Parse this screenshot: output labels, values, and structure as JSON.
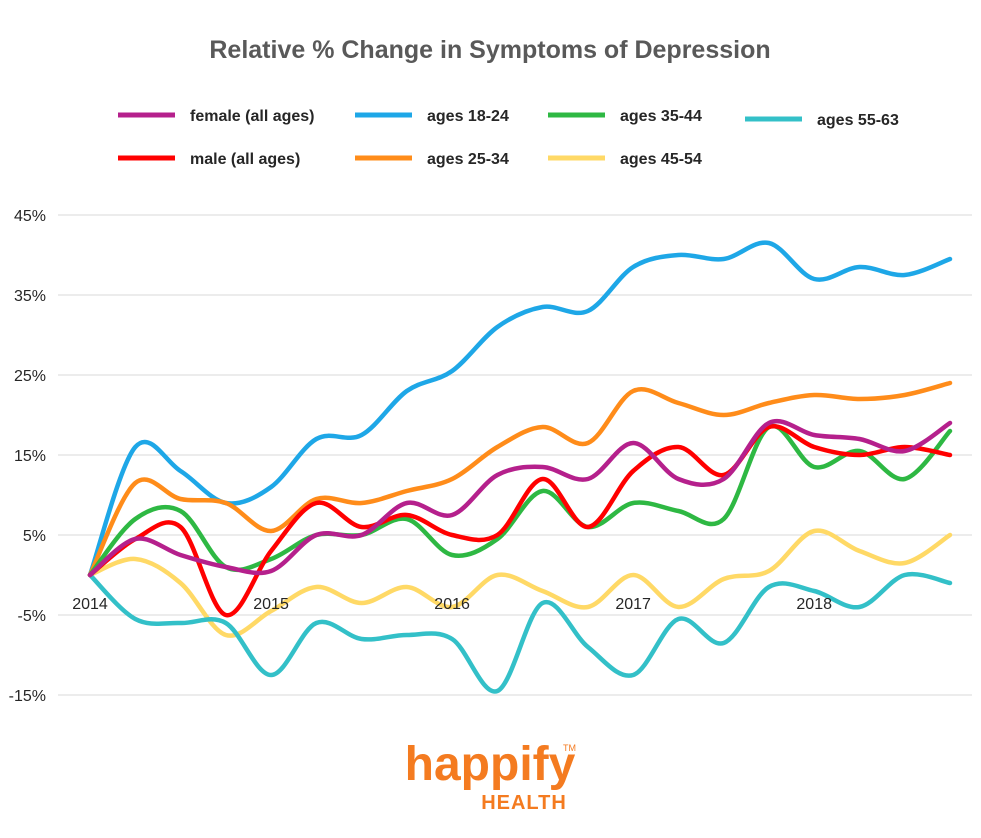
{
  "chart_data": {
    "type": "line",
    "title": "Relative % Change in Symptoms of Depression",
    "xlabel": "",
    "ylabel": "",
    "x_ticks": [
      "2014",
      "2015",
      "2016",
      "2017",
      "2018"
    ],
    "x_range": [
      2014,
      2018.75
    ],
    "y_ticks": [
      "45%",
      "35%",
      "25%",
      "15%",
      "5%",
      "-5%",
      "-15%"
    ],
    "ylim": [
      -15,
      45
    ],
    "grid": true,
    "legend_position": "top",
    "series": [
      {
        "name": "female (all ages)",
        "color": "#b5208c",
        "x": [
          2014,
          2014.25,
          2014.5,
          2014.75,
          2015,
          2015.25,
          2015.5,
          2015.75,
          2016,
          2016.25,
          2016.5,
          2016.75,
          2017,
          2017.25,
          2017.5,
          2017.75,
          2018,
          2018.25,
          2018.5,
          2018.75
        ],
        "y": [
          0,
          4.5,
          2.5,
          1,
          0.5,
          5,
          5,
          9,
          7.5,
          12.5,
          13.5,
          12,
          16.5,
          12,
          12,
          19,
          17.5,
          17,
          15.5,
          19
        ]
      },
      {
        "name": "male (all ages)",
        "color": "#ff0000",
        "x": [
          2014,
          2014.25,
          2014.5,
          2014.75,
          2015,
          2015.25,
          2015.5,
          2015.75,
          2016,
          2016.25,
          2016.5,
          2016.75,
          2017,
          2017.25,
          2017.5,
          2017.75,
          2018,
          2018.25,
          2018.5,
          2018.75
        ],
        "y": [
          0,
          4.5,
          6,
          -5,
          3,
          9,
          6,
          7.5,
          5,
          5,
          12,
          6,
          13,
          16,
          12.5,
          18.5,
          16,
          15,
          16,
          15
        ]
      },
      {
        "name": "ages 18-24",
        "color": "#1ea7e7",
        "x": [
          2014,
          2014.25,
          2014.5,
          2014.75,
          2015,
          2015.25,
          2015.5,
          2015.75,
          2016,
          2016.25,
          2016.5,
          2016.75,
          2017,
          2017.25,
          2017.5,
          2017.75,
          2018,
          2018.25,
          2018.5,
          2018.75
        ],
        "y": [
          0,
          16,
          13,
          9,
          11,
          17,
          17.5,
          23,
          25.5,
          31,
          33.5,
          33,
          38.5,
          40,
          39.5,
          41.5,
          37,
          38.5,
          37.5,
          39.5
        ]
      },
      {
        "name": "ages 25-34",
        "color": "#ff8c1a",
        "x": [
          2014,
          2014.25,
          2014.5,
          2014.75,
          2015,
          2015.25,
          2015.5,
          2015.75,
          2016,
          2016.25,
          2016.5,
          2016.75,
          2017,
          2017.25,
          2017.5,
          2017.75,
          2018,
          2018.25,
          2018.5,
          2018.75
        ],
        "y": [
          0,
          11.5,
          9.5,
          9,
          5.5,
          9.5,
          9,
          10.5,
          12,
          16,
          18.5,
          16.5,
          23,
          21.5,
          20,
          21.5,
          22.5,
          22,
          22.5,
          24
        ]
      },
      {
        "name": "ages 35-44",
        "color": "#2eb843",
        "x": [
          2014,
          2014.25,
          2014.5,
          2014.75,
          2015,
          2015.25,
          2015.5,
          2015.75,
          2016,
          2016.25,
          2016.5,
          2016.75,
          2017,
          2017.25,
          2017.5,
          2017.75,
          2018,
          2018.25,
          2018.5,
          2018.75
        ],
        "y": [
          0,
          7,
          8,
          1,
          2,
          5,
          5,
          7,
          2.5,
          4.5,
          10.5,
          6,
          9,
          8,
          7,
          18.5,
          13.5,
          15.5,
          12,
          18
        ]
      },
      {
        "name": "ages 45-54",
        "color": "#ffd966",
        "x": [
          2014,
          2014.25,
          2014.5,
          2014.75,
          2015,
          2015.25,
          2015.5,
          2015.75,
          2016,
          2016.25,
          2016.5,
          2016.75,
          2017,
          2017.25,
          2017.5,
          2017.75,
          2018,
          2018.25,
          2018.5,
          2018.75
        ],
        "y": [
          0,
          2,
          -1,
          -7.5,
          -4.5,
          -1.5,
          -3.5,
          -1.5,
          -4,
          0,
          -2,
          -4,
          0,
          -4,
          -0.5,
          0.5,
          5.5,
          3,
          1.5,
          5
        ]
      },
      {
        "name": "ages 55-63",
        "color": "#33c0c8",
        "x": [
          2014,
          2014.25,
          2014.5,
          2014.75,
          2015,
          2015.25,
          2015.5,
          2015.75,
          2016,
          2016.25,
          2016.5,
          2016.75,
          2017,
          2017.25,
          2017.5,
          2017.75,
          2018,
          2018.25,
          2018.5,
          2018.75
        ],
        "y": [
          0,
          -5.5,
          -6,
          -6,
          -12.5,
          -6,
          -8,
          -7.5,
          -8,
          -14.5,
          -3.5,
          -9,
          -12.5,
          -5.5,
          -8.5,
          -1.5,
          -2,
          -4,
          0,
          -1
        ]
      }
    ]
  },
  "logo": {
    "name": "happify",
    "trademark": "TM",
    "subtitle": "HEALTH"
  }
}
